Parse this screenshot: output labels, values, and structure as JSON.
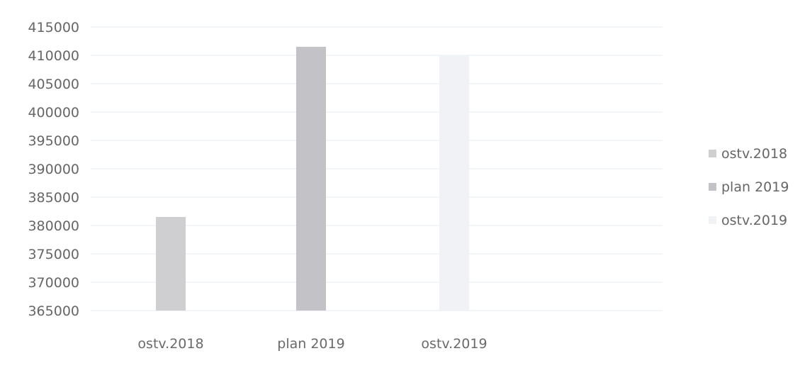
{
  "chart_data": {
    "type": "bar",
    "categories": [
      "ostv.2018",
      "plan 2019",
      "ostv.2019"
    ],
    "values": [
      381500,
      411500,
      410000
    ],
    "title": "",
    "xlabel": "",
    "ylabel": "",
    "ylim": [
      365000,
      415000
    ],
    "yticks": [
      "415000",
      "410000",
      "405000",
      "400000",
      "395000",
      "390000",
      "385000",
      "380000",
      "375000",
      "370000",
      "365000"
    ],
    "grid": true,
    "legend": {
      "position": "right",
      "items": [
        "ostv.2018",
        "plan 2019",
        "ostv.2019"
      ]
    },
    "colors": [
      "#cfcfd2",
      "#c2c2c7",
      "#f0f2f5"
    ]
  }
}
